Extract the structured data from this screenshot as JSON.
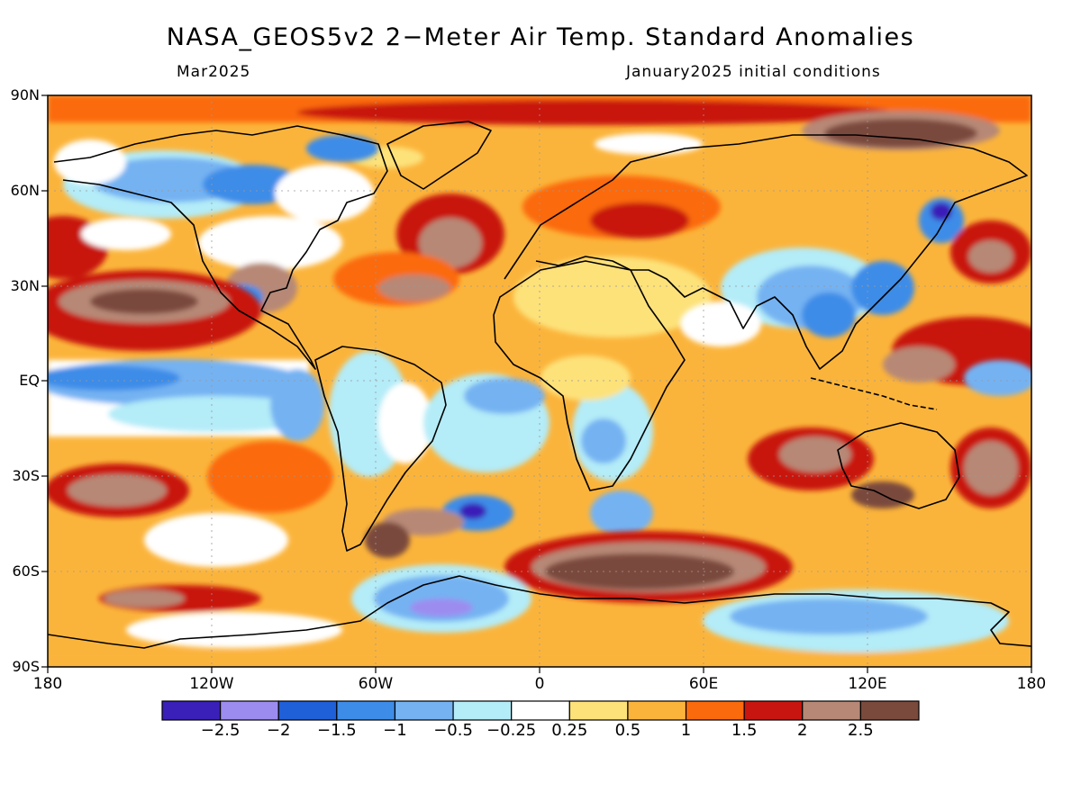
{
  "title": "NASA_GEOS5v2 2−Meter Air Temp. Standard Anomalies",
  "subtitle_left": "Mar2025",
  "subtitle_right": "January2025 initial conditions",
  "lat_labels": [
    "90N",
    "60N",
    "30N",
    "EQ",
    "30S",
    "60S",
    "90S"
  ],
  "lon_labels": [
    "180",
    "120W",
    "60W",
    "0",
    "60E",
    "120E",
    "180"
  ],
  "colorbar": {
    "colors": [
      "#3a1fb8",
      "#9c8cf0",
      "#1f5fd8",
      "#3d8ce8",
      "#74b2f2",
      "#b4ecf8",
      "#ffffff",
      "#fde27a",
      "#fbb43b",
      "#fb6a0c",
      "#c8150f",
      "#b78876",
      "#7a4a3c"
    ],
    "labels": [
      "−2.5",
      "−2",
      "−1.5",
      "−1",
      "−0.5",
      "−0.25",
      "0.25",
      "0.5",
      "1",
      "1.5",
      "2",
      "2.5"
    ]
  },
  "map": {
    "projection": "equirectangular",
    "lon_range": [
      -180,
      180
    ],
    "lat_range": [
      -90,
      90
    ],
    "background_color": "#fbb43b"
  }
}
